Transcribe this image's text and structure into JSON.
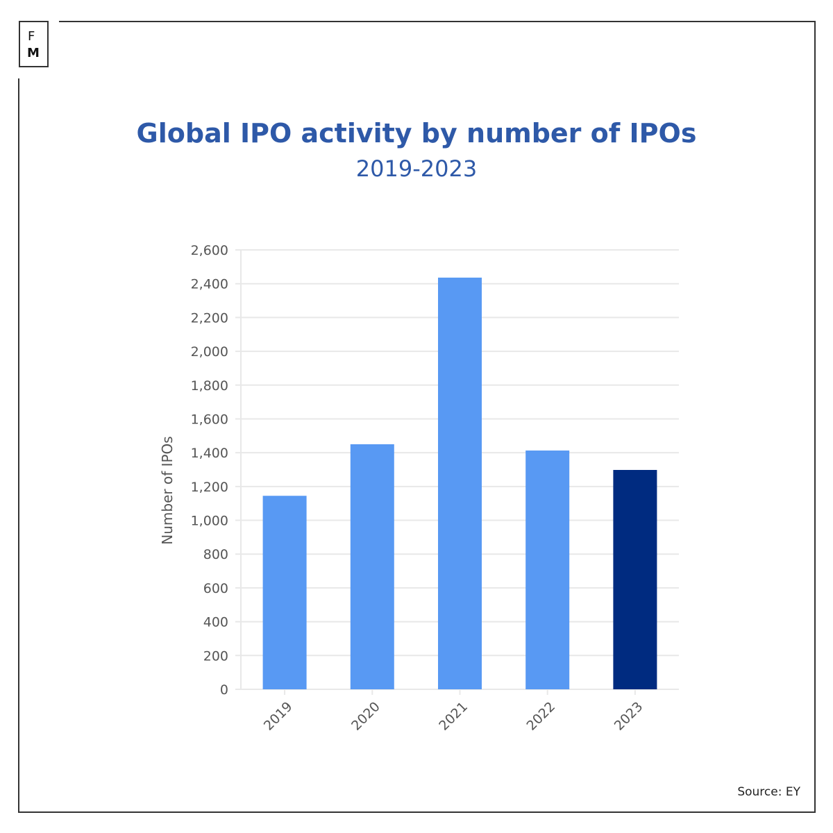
{
  "logo": {
    "line1": "F",
    "line2": "M"
  },
  "source": "Source: EY",
  "chart_data": {
    "type": "bar",
    "title": "Global IPO activity by number of IPOs",
    "subtitle": "2019-2023",
    "xlabel": "",
    "ylabel": "Number of IPOs",
    "categories": [
      "2019",
      "2020",
      "2021",
      "2022",
      "2023"
    ],
    "values": [
      1145,
      1450,
      2436,
      1413,
      1298
    ],
    "bar_colors": [
      "#5899f3",
      "#5899f3",
      "#5899f3",
      "#5899f3",
      "#002b80"
    ],
    "ylim": [
      0,
      2600
    ],
    "yticks": [
      0,
      200,
      400,
      600,
      800,
      1000,
      1200,
      1400,
      1600,
      1800,
      2000,
      2200,
      2400,
      2600
    ],
    "ytick_labels": [
      "0",
      "200",
      "400",
      "600",
      "800",
      "1,000",
      "1,200",
      "1,400",
      "1,600",
      "1,800",
      "2,000",
      "2,200",
      "2,400",
      "2,600"
    ],
    "grid": true
  }
}
